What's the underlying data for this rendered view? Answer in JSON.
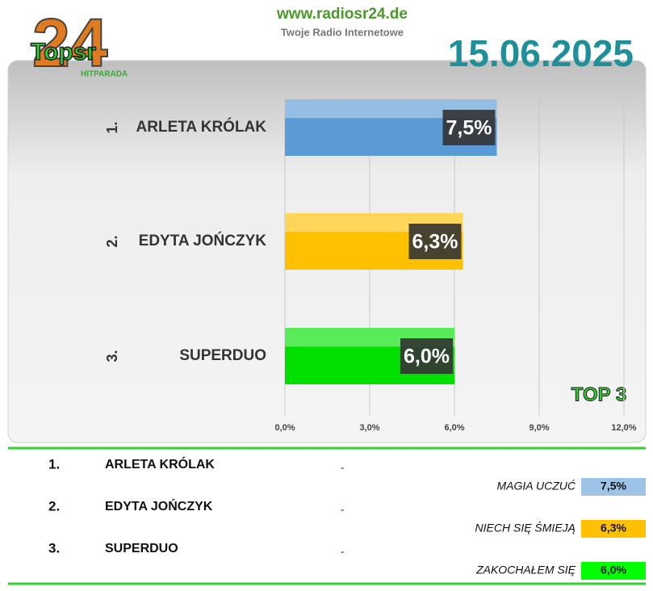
{
  "header": {
    "logo_number": "24",
    "logo_text": "Topsr",
    "logo_sub": "HITPARADA",
    "site": "www.radiosr24.de",
    "tagline": "Twoje Radio Internetowe",
    "date": "15.06.2025",
    "badge": "TOP 3"
  },
  "chart_data": {
    "type": "bar",
    "orientation": "horizontal",
    "ranks": [
      "1.",
      "2.",
      "3."
    ],
    "categories": [
      "ARLETA KRÓLAK",
      "EDYTA JOŃCZYK",
      "SUPERDUO"
    ],
    "values": [
      7.5,
      6.3,
      6.0
    ],
    "value_labels": [
      "7,5%",
      "6,3%",
      "6,0%"
    ],
    "colors": [
      "#5b9bd5",
      "#ffc000",
      "#00e000"
    ],
    "xlim": [
      0,
      12
    ],
    "xticks": [
      {
        "value": 0,
        "label": "0,0%"
      },
      {
        "value": 3,
        "label": "3,0%"
      },
      {
        "value": 6,
        "label": "6,0%"
      },
      {
        "value": 9,
        "label": "9,0%"
      },
      {
        "value": 12,
        "label": "12,0%"
      }
    ],
    "grid": true
  },
  "table": {
    "separator": "-",
    "songs": [
      "MAGIA UCZUĆ",
      "NIECH SIĘ ŚMIEJĄ",
      "ZAKOCHAŁEM SIĘ"
    ],
    "box_colors": [
      "#9dc3e6",
      "#ffc000",
      "#00ff00"
    ]
  }
}
